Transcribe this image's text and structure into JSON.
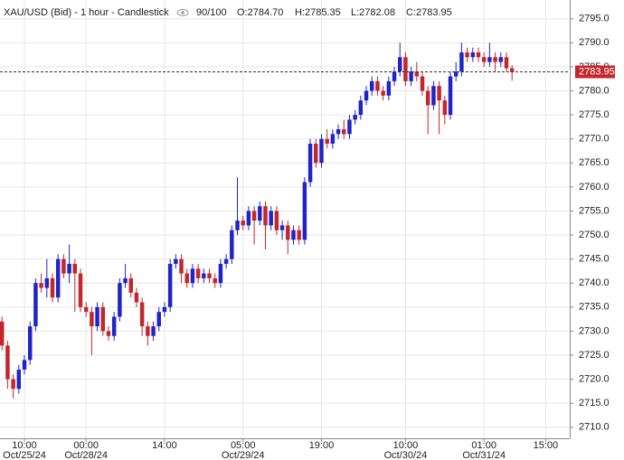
{
  "chart_data": {
    "type": "candlestick",
    "header": {
      "title": "XAU/USD (Bid) - 1 hour - Candlestick",
      "count": "90/100",
      "open": "O:2784.70",
      "high": "H:2785.35",
      "low": "L:2782.08",
      "close": "C:2783.95"
    },
    "up_color": "#1f24c8",
    "down_color": "#c3262b",
    "grid": true,
    "ylim": [
      2707.7,
      2798.9
    ],
    "yticks": [
      {
        "value": 2710,
        "label": "2710.0"
      },
      {
        "value": 2715,
        "label": "2715.0"
      },
      {
        "value": 2720,
        "label": "2720.0"
      },
      {
        "value": 2725,
        "label": "2725.0"
      },
      {
        "value": 2730,
        "label": "2730.0"
      },
      {
        "value": 2735,
        "label": "2735.0"
      },
      {
        "value": 2740,
        "label": "2740.0"
      },
      {
        "value": 2745,
        "label": "2745.0"
      },
      {
        "value": 2750,
        "label": "2750.0"
      },
      {
        "value": 2755,
        "label": "2755.0"
      },
      {
        "value": 2760,
        "label": "2760.0"
      },
      {
        "value": 2765,
        "label": "2765.0"
      },
      {
        "value": 2770,
        "label": "2770.0"
      },
      {
        "value": 2775,
        "label": "2775.0"
      },
      {
        "value": 2780,
        "label": "2780.0"
      },
      {
        "value": 2785,
        "label": "2785.0"
      },
      {
        "value": 2790,
        "label": "2790.0"
      },
      {
        "value": 2795,
        "label": "2795.0"
      }
    ],
    "xlim": [
      -0.36,
      101.3
    ],
    "xticks": [
      {
        "value": 4,
        "label": "10:00",
        "date": "Oct/25/24"
      },
      {
        "value": 15,
        "label": "00:00",
        "date": "Oct/28/24"
      },
      {
        "value": 29,
        "label": "14:00"
      },
      {
        "value": 43,
        "label": "05:00",
        "date": "Oct/29/24"
      },
      {
        "value": 57,
        "label": "19:00"
      },
      {
        "value": 72,
        "label": "10:00",
        "date": "Oct/30/24"
      },
      {
        "value": 86,
        "label": "01:00",
        "date": "Oct/31/24"
      },
      {
        "value": 97,
        "label": "15:00"
      }
    ],
    "open": [
      2732,
      2727,
      2720,
      2718,
      2722,
      2724,
      2731,
      2740,
      2739,
      2741,
      2737,
      2745,
      2742,
      2744,
      2742,
      2735,
      2734,
      2731,
      2735,
      2730,
      2729,
      2733,
      2740,
      2741,
      2738,
      2736,
      2731,
      2729,
      2731,
      2734,
      2735,
      2744,
      2745,
      2742,
      2740,
      2743,
      2741,
      2742,
      2741,
      2740,
      2744,
      2745,
      2751,
      2753,
      2752,
      2755,
      2753,
      2756,
      2752,
      2755,
      2751,
      2752,
      2749,
      2751,
      2749,
      2761,
      2769,
      2765,
      2770,
      2769,
      2771,
      2772,
      2771,
      2774,
      2775,
      2778,
      2780,
      2782,
      2780,
      2779,
      2782,
      2784,
      2787,
      2782,
      2784,
      2783,
      2780,
      2777,
      2781,
      2778,
      2775,
      2783,
      2784,
      2788,
      2787,
      2788,
      2787,
      2786,
      2787,
      2786,
      2787,
      2784.7
    ],
    "high": [
      2733,
      2728,
      2721,
      2723,
      2725,
      2732,
      2741,
      2742,
      2745,
      2742,
      2746,
      2746,
      2748,
      2745,
      2743,
      2736,
      2735,
      2736,
      2736,
      2731,
      2734,
      2741,
      2744,
      2742,
      2739,
      2737,
      2732,
      2732,
      2735,
      2736,
      2745,
      2746,
      2746,
      2743,
      2744,
      2744,
      2743,
      2743,
      2742,
      2745,
      2746,
      2752,
      2762,
      2754,
      2756,
      2756,
      2757,
      2757,
      2756,
      2756,
      2753,
      2753,
      2752,
      2752,
      2762,
      2770,
      2770,
      2771,
      2772,
      2772,
      2773,
      2774,
      2775,
      2776,
      2779,
      2781,
      2783,
      2783,
      2781,
      2783,
      2785,
      2790,
      2788,
      2785,
      2786,
      2784,
      2781,
      2782,
      2782,
      2779,
      2784,
      2786,
      2790,
      2789,
      2789,
      2789,
      2788,
      2790,
      2788,
      2788,
      2788,
      2785.35
    ],
    "low": [
      2726,
      2718,
      2716,
      2717,
      2721,
      2723,
      2730,
      2738,
      2737,
      2736,
      2736,
      2741,
      2740,
      2734,
      2734,
      2733,
      2725,
      2730,
      2729,
      2728,
      2728,
      2732,
      2739,
      2737,
      2735,
      2729,
      2727,
      2728,
      2730,
      2733,
      2734,
      2743,
      2740,
      2739,
      2739,
      2740,
      2740,
      2740,
      2739,
      2739,
      2743,
      2744,
      2750,
      2751,
      2751,
      2748,
      2752,
      2747,
      2751,
      2750,
      2749,
      2746,
      2748,
      2748,
      2748,
      2760,
      2764,
      2764,
      2768,
      2768,
      2770,
      2770,
      2770,
      2773,
      2774,
      2777,
      2779,
      2779,
      2778,
      2778,
      2781,
      2783,
      2781,
      2781,
      2782,
      2779,
      2771,
      2776,
      2771,
      2773,
      2774,
      2782,
      2783,
      2786,
      2786,
      2786,
      2785,
      2785,
      2784,
      2785,
      2784,
      2782.08
    ],
    "close": [
      2727,
      2720,
      2718,
      2722,
      2724,
      2731,
      2740,
      2739,
      2741,
      2737,
      2745,
      2742,
      2744,
      2742,
      2735,
      2734,
      2731,
      2735,
      2730,
      2729,
      2733,
      2740,
      2741,
      2738,
      2736,
      2731,
      2729,
      2731,
      2734,
      2735,
      2744,
      2745,
      2742,
      2740,
      2743,
      2741,
      2742,
      2741,
      2740,
      2744,
      2745,
      2751,
      2753,
      2752,
      2755,
      2753,
      2756,
      2752,
      2755,
      2751,
      2752,
      2749,
      2751,
      2749,
      2761,
      2769,
      2765,
      2770,
      2769,
      2771,
      2772,
      2771,
      2774,
      2775,
      2778,
      2780,
      2782,
      2780,
      2779,
      2782,
      2784,
      2787,
      2782,
      2784,
      2783,
      2780,
      2777,
      2781,
      2778,
      2775,
      2783,
      2784,
      2788,
      2787,
      2788,
      2787,
      2786,
      2787,
      2786,
      2787,
      2784.7,
      2783.95
    ]
  }
}
